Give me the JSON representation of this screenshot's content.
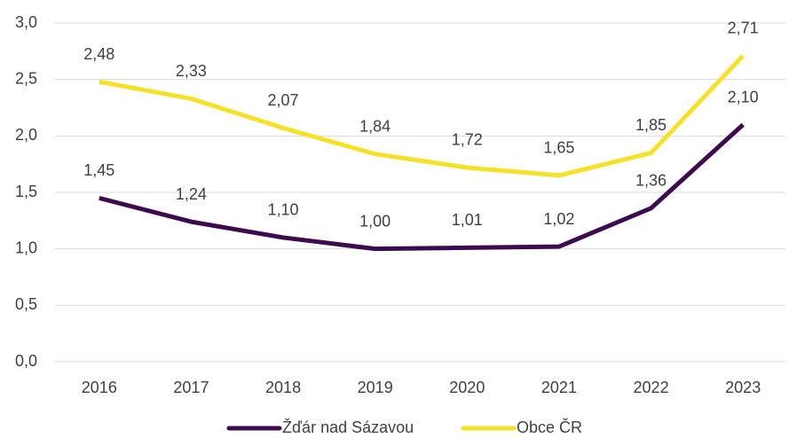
{
  "chart_data": {
    "type": "line",
    "categories": [
      "2016",
      "2017",
      "2018",
      "2019",
      "2020",
      "2021",
      "2022",
      "2023"
    ],
    "series": [
      {
        "name": "Žďár nad Sázavou",
        "color": "#3d0a4f",
        "values": [
          1.45,
          1.24,
          1.1,
          1.0,
          1.01,
          1.02,
          1.36,
          2.1
        ],
        "value_labels": [
          "1,45",
          "1,24",
          "1,10",
          "1,00",
          "1,01",
          "1,02",
          "1,36",
          "2,10"
        ]
      },
      {
        "name": "Obce ČR",
        "color": "#f5e12a",
        "values": [
          2.48,
          2.33,
          2.07,
          1.84,
          1.72,
          1.65,
          1.85,
          2.71
        ],
        "value_labels": [
          "2,48",
          "2,33",
          "2,07",
          "1,84",
          "1,72",
          "1,65",
          "1,85",
          "2,71"
        ]
      }
    ],
    "ylim": [
      0,
      3
    ],
    "yticks": [
      {
        "value": 0,
        "label": "0,0"
      },
      {
        "value": 0.5,
        "label": "0,5"
      },
      {
        "value": 1,
        "label": "1,0"
      },
      {
        "value": 1.5,
        "label": "1,5"
      },
      {
        "value": 2,
        "label": "2,0"
      },
      {
        "value": 2.5,
        "label": "2,5"
      },
      {
        "value": 3,
        "label": "3,0"
      }
    ],
    "grid": true,
    "legend": "bottom"
  }
}
